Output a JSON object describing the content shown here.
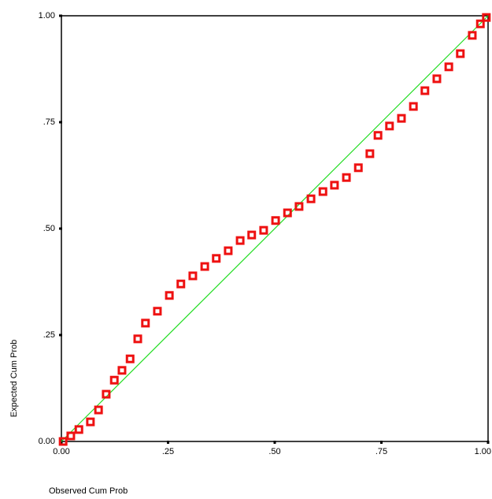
{
  "chart_data": {
    "type": "scatter",
    "xlabel": "Observed Cum Prob",
    "ylabel": "Expected Cum Prob",
    "xlim": [
      0,
      1
    ],
    "ylim": [
      0,
      1
    ],
    "xticks": [
      {
        "value": 0,
        "label": "0.00"
      },
      {
        "value": 0.25,
        "label": ".25"
      },
      {
        "value": 0.5,
        "label": ".50"
      },
      {
        "value": 0.75,
        "label": ".75"
      },
      {
        "value": 1,
        "label": "1.00"
      }
    ],
    "yticks": [
      {
        "value": 0,
        "label": "0.00"
      },
      {
        "value": 0.25,
        "label": ".25"
      },
      {
        "value": 0.5,
        "label": ".50"
      },
      {
        "value": 0.75,
        "label": ".75"
      },
      {
        "value": 1,
        "label": "1.00"
      }
    ],
    "x": [
      0.004,
      0.022,
      0.041,
      0.068,
      0.087,
      0.105,
      0.124,
      0.142,
      0.161,
      0.179,
      0.197,
      0.225,
      0.253,
      0.28,
      0.308,
      0.336,
      0.363,
      0.391,
      0.419,
      0.446,
      0.474,
      0.502,
      0.53,
      0.557,
      0.585,
      0.613,
      0.64,
      0.668,
      0.696,
      0.723,
      0.742,
      0.769,
      0.797,
      0.825,
      0.852,
      0.88,
      0.908,
      0.935,
      0.963,
      0.982,
      0.996
    ],
    "series": [
      {
        "color": "#ee1111",
        "values": [
          0,
          0.013,
          0.028,
          0.046,
          0.074,
          0.111,
          0.144,
          0.167,
          0.194,
          0.241,
          0.278,
          0.306,
          0.343,
          0.37,
          0.389,
          0.411,
          0.43,
          0.448,
          0.472,
          0.485,
          0.496,
          0.519,
          0.537,
          0.552,
          0.57,
          0.587,
          0.602,
          0.62,
          0.643,
          0.676,
          0.719,
          0.741,
          0.759,
          0.787,
          0.824,
          0.852,
          0.88,
          0.911,
          0.954,
          0.981,
          0.996
        ]
      }
    ],
    "reference_line": {
      "x": [
        0,
        1
      ],
      "y": [
        0,
        1
      ],
      "color": "#22dd22"
    }
  }
}
